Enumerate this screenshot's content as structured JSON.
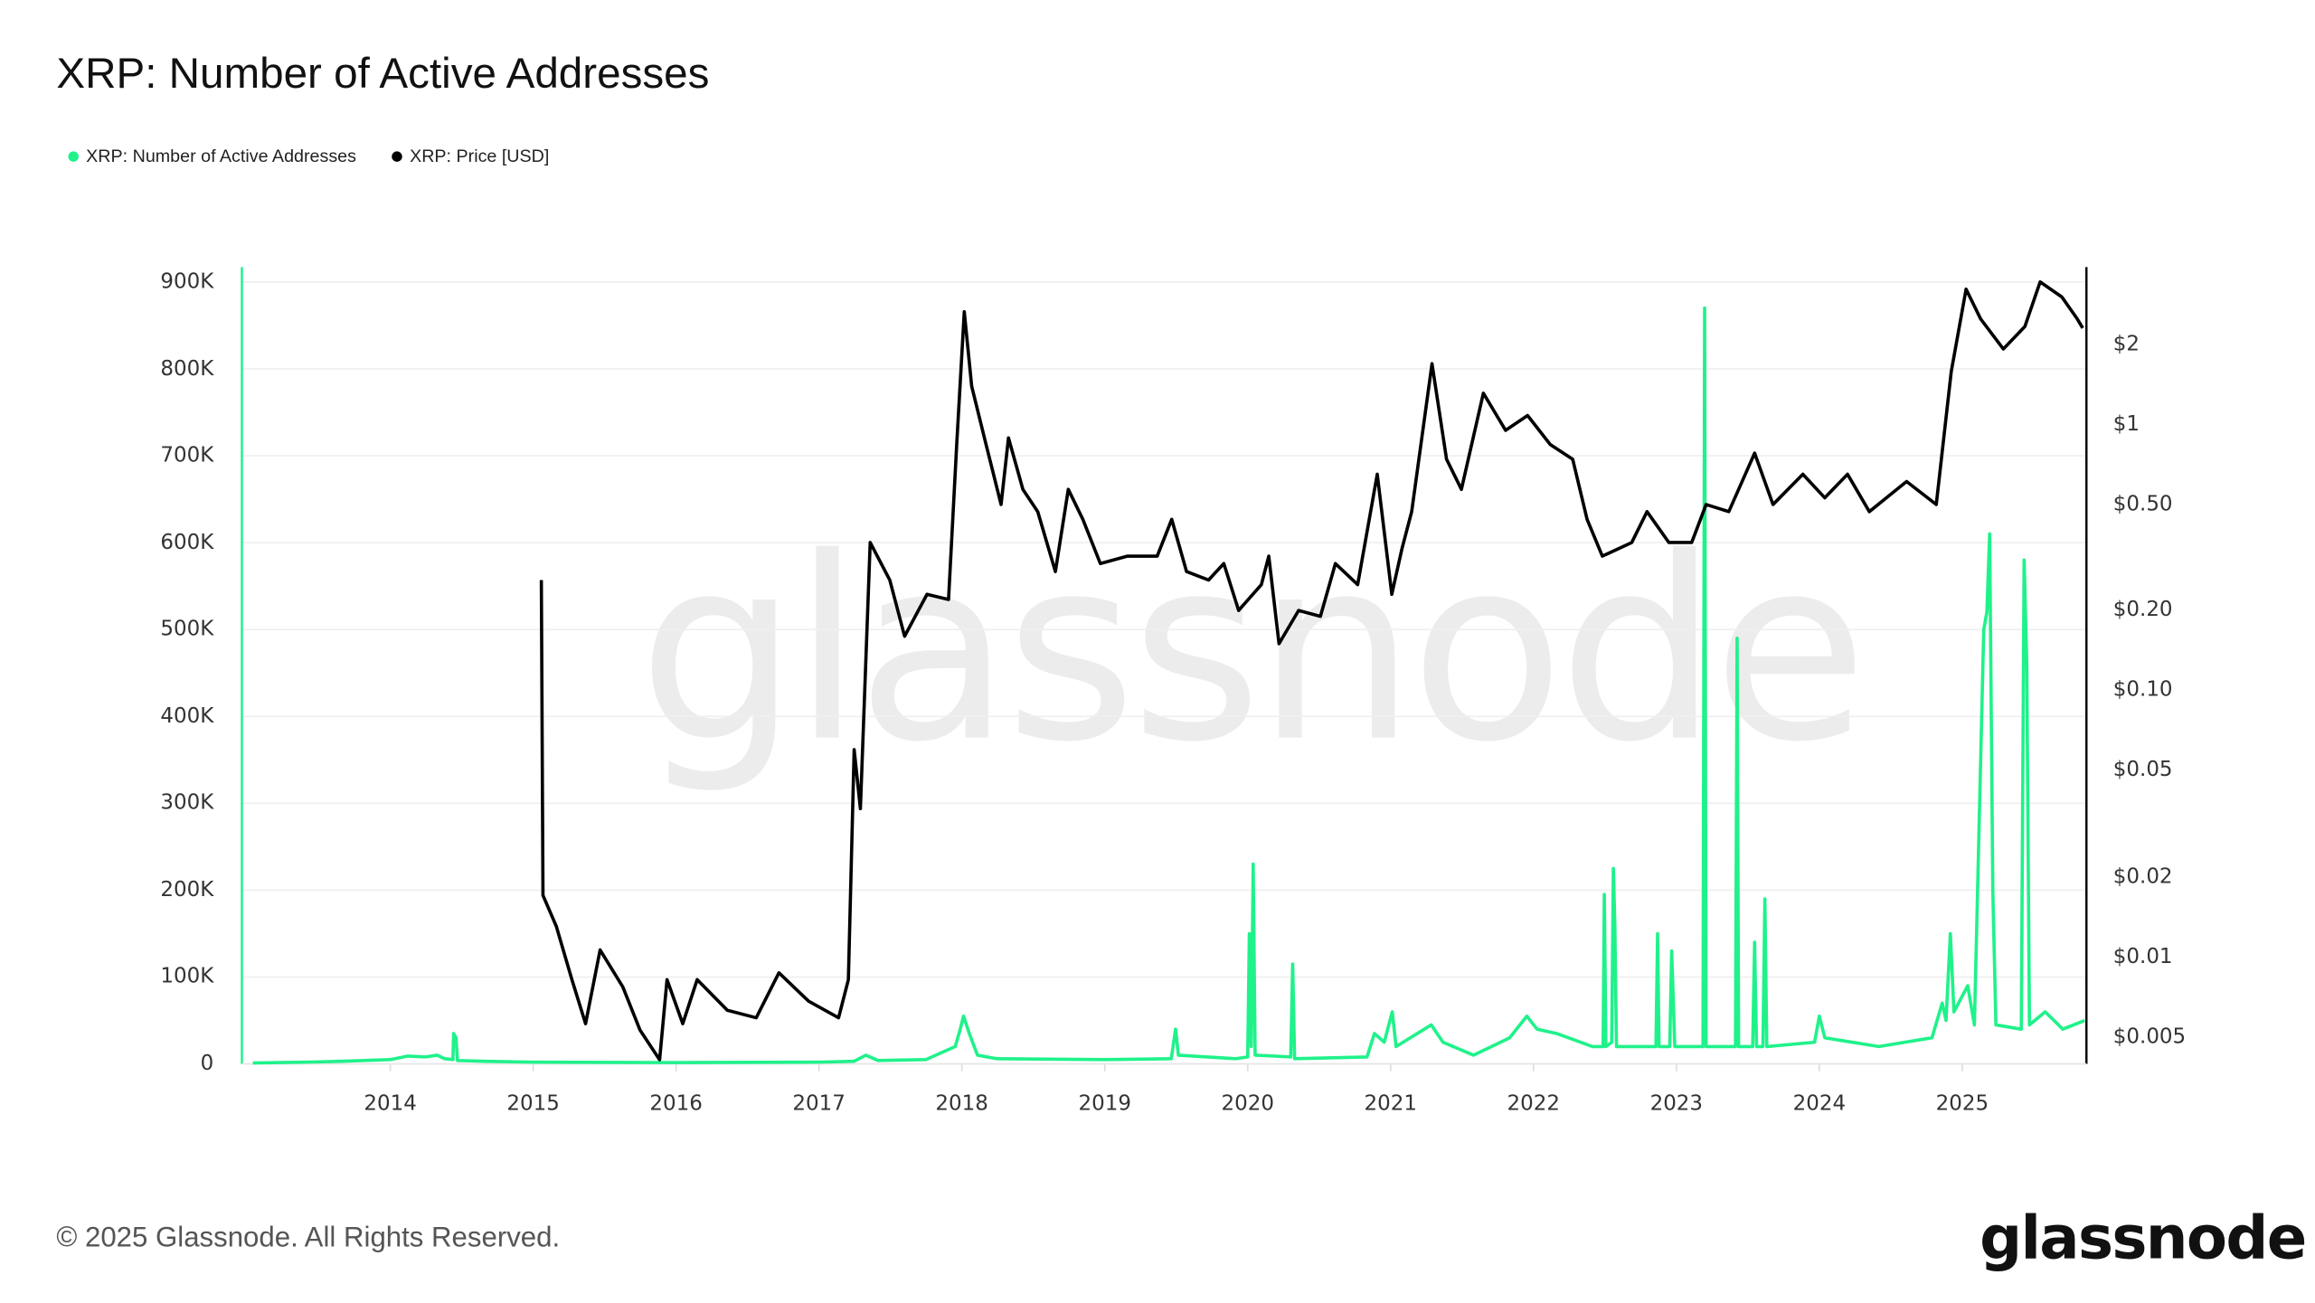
{
  "page": {
    "title": "XRP: Number of Active Addresses",
    "footer": "© 2025 Glassnode. All Rights Reserved.",
    "logo_text": "glassnode",
    "watermark_text": "glassnode"
  },
  "chart_data": {
    "type": "line",
    "title": "XRP: Number of Active Addresses",
    "legend_position": "top-left",
    "grid": true,
    "x_ticks": [
      "2014",
      "2015",
      "2016",
      "2017",
      "2018",
      "2019",
      "2020",
      "2021",
      "2022",
      "2023",
      "2024",
      "2025"
    ],
    "y_left": {
      "ticks": [
        "0",
        "100K",
        "200K",
        "300K",
        "400K",
        "500K",
        "600K",
        "700K",
        "800K",
        "900K"
      ],
      "range": [
        0,
        900000
      ]
    },
    "y_right": {
      "scale": "log",
      "ticks": [
        "$2",
        "$1",
        "$0.50",
        "$0.20",
        "$0.10",
        "$0.05",
        "$0.02",
        "$0.01",
        "$0.005"
      ],
      "tick_values": [
        2,
        1,
        0.5,
        0.2,
        0.1,
        0.05,
        0.02,
        0.01,
        0.005
      ]
    },
    "colors": {
      "active_addresses": "#1ff28a",
      "price": "#000000"
    },
    "series": [
      {
        "name": "XRP: Number of Active Addresses",
        "axis": "left",
        "points": [
          [
            "2013-01-15",
            1000
          ],
          [
            "2013-06-01",
            2000
          ],
          [
            "2013-09-01",
            3000
          ],
          [
            "2014-01-01",
            5000
          ],
          [
            "2014-02-15",
            9000
          ],
          [
            "2014-04-01",
            8000
          ],
          [
            "2014-05-01",
            10000
          ],
          [
            "2014-05-20",
            6000
          ],
          [
            "2014-06-10",
            5000
          ],
          [
            "2014-06-12",
            35000
          ],
          [
            "2014-06-18",
            30000
          ],
          [
            "2014-06-22",
            4000
          ],
          [
            "2014-09-01",
            3000
          ],
          [
            "2015-01-01",
            2000
          ],
          [
            "2016-01-01",
            1500
          ],
          [
            "2017-01-01",
            2000
          ],
          [
            "2017-04-01",
            3000
          ],
          [
            "2017-05-01",
            10000
          ],
          [
            "2017-06-01",
            4000
          ],
          [
            "2017-10-01",
            5000
          ],
          [
            "2017-12-15",
            20000
          ],
          [
            "2017-12-28",
            40000
          ],
          [
            "2018-01-05",
            55000
          ],
          [
            "2018-01-20",
            35000
          ],
          [
            "2018-02-10",
            10000
          ],
          [
            "2018-04-01",
            6000
          ],
          [
            "2019-01-01",
            5000
          ],
          [
            "2019-06-20",
            6000
          ],
          [
            "2019-07-01",
            40000
          ],
          [
            "2019-07-08",
            10000
          ],
          [
            "2019-12-01",
            6000
          ],
          [
            "2020-01-01",
            8000
          ],
          [
            "2020-01-05",
            150000
          ],
          [
            "2020-01-10",
            20000
          ],
          [
            "2020-01-15",
            230000
          ],
          [
            "2020-01-20",
            10000
          ],
          [
            "2020-04-20",
            8000
          ],
          [
            "2020-04-25",
            115000
          ],
          [
            "2020-04-30",
            6000
          ],
          [
            "2020-11-01",
            8000
          ],
          [
            "2020-11-20",
            35000
          ],
          [
            "2020-12-15",
            25000
          ],
          [
            "2021-01-05",
            60000
          ],
          [
            "2021-01-15",
            20000
          ],
          [
            "2021-04-15",
            45000
          ],
          [
            "2021-05-15",
            25000
          ],
          [
            "2021-08-01",
            10000
          ],
          [
            "2021-11-01",
            30000
          ],
          [
            "2021-12-15",
            55000
          ],
          [
            "2022-01-10",
            40000
          ],
          [
            "2022-03-01",
            35000
          ],
          [
            "2022-06-01",
            20000
          ],
          [
            "2022-06-28",
            20000
          ],
          [
            "2022-07-01",
            195000
          ],
          [
            "2022-07-05",
            20000
          ],
          [
            "2022-07-20",
            25000
          ],
          [
            "2022-07-24",
            225000
          ],
          [
            "2022-07-28",
            160000
          ],
          [
            "2022-08-01",
            20000
          ],
          [
            "2022-11-10",
            20000
          ],
          [
            "2022-11-14",
            150000
          ],
          [
            "2022-11-18",
            20000
          ],
          [
            "2022-12-15",
            20000
          ],
          [
            "2022-12-20",
            130000
          ],
          [
            "2022-12-28",
            20000
          ],
          [
            "2023-03-10",
            20000
          ],
          [
            "2023-03-14",
            870000
          ],
          [
            "2023-03-18",
            20000
          ],
          [
            "2023-06-01",
            20000
          ],
          [
            "2023-06-05",
            490000
          ],
          [
            "2023-06-09",
            20000
          ],
          [
            "2023-07-15",
            20000
          ],
          [
            "2023-07-20",
            140000
          ],
          [
            "2023-07-25",
            20000
          ],
          [
            "2023-08-10",
            20000
          ],
          [
            "2023-08-15",
            190000
          ],
          [
            "2023-08-20",
            20000
          ],
          [
            "2023-12-20",
            25000
          ],
          [
            "2024-01-01",
            55000
          ],
          [
            "2024-01-15",
            30000
          ],
          [
            "2024-06-01",
            20000
          ],
          [
            "2024-10-15",
            30000
          ],
          [
            "2024-11-10",
            70000
          ],
          [
            "2024-11-20",
            50000
          ],
          [
            "2024-12-01",
            150000
          ],
          [
            "2024-12-10",
            60000
          ],
          [
            "2025-01-15",
            90000
          ],
          [
            "2025-02-01",
            45000
          ],
          [
            "2025-02-25",
            500000
          ],
          [
            "2025-03-05",
            520000
          ],
          [
            "2025-03-12",
            610000
          ],
          [
            "2025-03-20",
            200000
          ],
          [
            "2025-03-28",
            45000
          ],
          [
            "2025-06-01",
            40000
          ],
          [
            "2025-06-08",
            580000
          ],
          [
            "2025-06-15",
            460000
          ],
          [
            "2025-06-22",
            45000
          ],
          [
            "2025-08-01",
            60000
          ],
          [
            "2025-09-15",
            40000
          ],
          [
            "2025-11-10",
            50000
          ]
        ]
      },
      {
        "name": "XRP: Price [USD]",
        "axis": "right",
        "points": [
          [
            "2015-01-22",
            0.26
          ],
          [
            "2015-01-26",
            0.017
          ],
          [
            "2015-03-01",
            0.013
          ],
          [
            "2015-04-10",
            0.0082
          ],
          [
            "2015-05-15",
            0.0056
          ],
          [
            "2015-06-21",
            0.0106
          ],
          [
            "2015-08-18",
            0.0077
          ],
          [
            "2015-10-01",
            0.0053
          ],
          [
            "2015-11-20",
            0.0041
          ],
          [
            "2015-12-09",
            0.0082
          ],
          [
            "2016-01-18",
            0.0056
          ],
          [
            "2016-02-24",
            0.0082
          ],
          [
            "2016-05-11",
            0.0063
          ],
          [
            "2016-07-24",
            0.0059
          ],
          [
            "2016-09-20",
            0.0087
          ],
          [
            "2016-12-05",
            0.0068
          ],
          [
            "2017-02-20",
            0.0059
          ],
          [
            "2017-03-17",
            0.0082
          ],
          [
            "2017-04-01",
            0.06
          ],
          [
            "2017-04-17",
            0.036
          ],
          [
            "2017-05-12",
            0.36
          ],
          [
            "2017-07-01",
            0.26
          ],
          [
            "2017-08-08",
            0.16
          ],
          [
            "2017-10-04",
            0.23
          ],
          [
            "2017-11-28",
            0.22
          ],
          [
            "2017-12-19",
            0.84
          ],
          [
            "2018-01-07",
            2.65
          ],
          [
            "2018-01-26",
            1.39
          ],
          [
            "2018-03-04",
            0.84
          ],
          [
            "2018-04-11",
            0.5
          ],
          [
            "2018-04-30",
            0.89
          ],
          [
            "2018-06-06",
            0.57
          ],
          [
            "2018-07-14",
            0.47
          ],
          [
            "2018-08-28",
            0.28
          ],
          [
            "2018-09-30",
            0.57
          ],
          [
            "2018-11-06",
            0.44
          ],
          [
            "2018-12-21",
            0.3
          ],
          [
            "2019-02-28",
            0.32
          ],
          [
            "2019-05-15",
            0.32
          ],
          [
            "2019-06-21",
            0.44
          ],
          [
            "2019-07-29",
            0.28
          ],
          [
            "2019-09-23",
            0.26
          ],
          [
            "2019-11-01",
            0.3
          ],
          [
            "2019-12-09",
            0.2
          ],
          [
            "2020-02-05",
            0.25
          ],
          [
            "2020-02-24",
            0.32
          ],
          [
            "2020-03-21",
            0.15
          ],
          [
            "2020-05-10",
            0.2
          ],
          [
            "2020-07-05",
            0.19
          ],
          [
            "2020-08-12",
            0.3
          ],
          [
            "2020-10-08",
            0.25
          ],
          [
            "2020-11-27",
            0.65
          ],
          [
            "2021-01-04",
            0.23
          ],
          [
            "2021-01-30",
            0.34
          ],
          [
            "2021-02-24",
            0.47
          ],
          [
            "2021-04-17",
            1.69
          ],
          [
            "2021-05-24",
            0.74
          ],
          [
            "2021-07-01",
            0.57
          ],
          [
            "2021-08-26",
            1.31
          ],
          [
            "2021-10-22",
            0.95
          ],
          [
            "2021-12-17",
            1.08
          ],
          [
            "2022-02-13",
            0.84
          ],
          [
            "2022-04-11",
            0.74
          ],
          [
            "2022-05-18",
            0.44
          ],
          [
            "2022-06-26",
            0.32
          ],
          [
            "2022-09-09",
            0.36
          ],
          [
            "2022-10-18",
            0.47
          ],
          [
            "2022-12-13",
            0.36
          ],
          [
            "2023-02-09",
            0.36
          ],
          [
            "2023-03-18",
            0.5
          ],
          [
            "2023-05-15",
            0.47
          ],
          [
            "2023-07-20",
            0.78
          ],
          [
            "2023-09-05",
            0.5
          ],
          [
            "2023-11-20",
            0.65
          ],
          [
            "2024-01-15",
            0.53
          ],
          [
            "2024-03-13",
            0.65
          ],
          [
            "2024-05-08",
            0.47
          ],
          [
            "2024-08-11",
            0.61
          ],
          [
            "2024-10-26",
            0.5
          ],
          [
            "2024-12-03",
            1.58
          ],
          [
            "2025-01-11",
            3.22
          ],
          [
            "2025-02-17",
            2.49
          ],
          [
            "2025-04-16",
            1.92
          ],
          [
            "2025-06-10",
            2.33
          ],
          [
            "2025-07-19",
            3.43
          ],
          [
            "2025-09-13",
            3.01
          ],
          [
            "2025-10-22",
            2.49
          ],
          [
            "2025-11-05",
            2.3
          ]
        ]
      }
    ]
  }
}
